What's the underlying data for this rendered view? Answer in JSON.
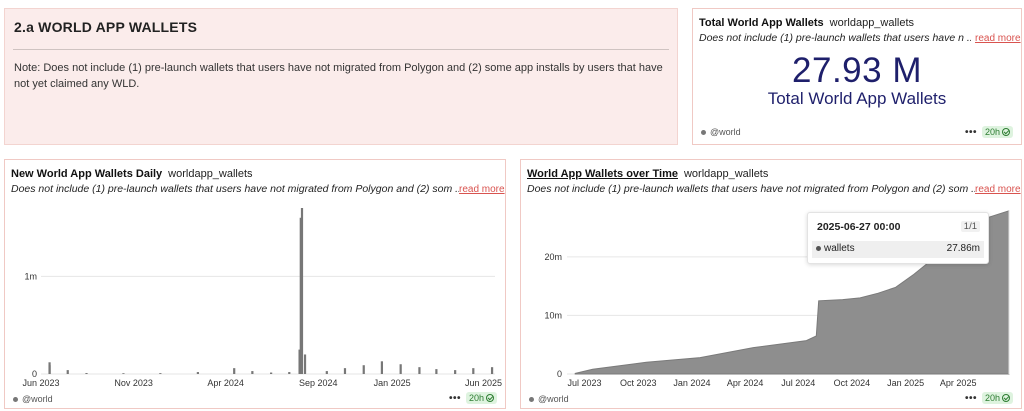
{
  "text_panel": {
    "title": "2.a WORLD APP WALLETS",
    "note": "Note: Does not include (1) pre-launch wallets that users have not migrated from Polygon and (2) some app installs by users that have not yet claimed any WLD."
  },
  "counter_panel": {
    "title": "Total World App Wallets",
    "subtitle": "worldapp_wallets",
    "description": "Does not include (1) pre-launch wallets that users have n ...",
    "read_more": "read more",
    "value": "27.93 M",
    "value_label": "Total World App Wallets",
    "owner": "@world",
    "more": "•••",
    "refresh": "20h"
  },
  "daily_panel": {
    "title": "New World App Wallets Daily",
    "subtitle": "worldapp_wallets",
    "description": "Does not include (1) pre-launch wallets that users have not migrated from Polygon and (2) som ...",
    "read_more": "read more",
    "owner": "@world",
    "more": "•••",
    "refresh": "20h"
  },
  "time_panel": {
    "title": "World App Wallets over Time",
    "subtitle": "worldapp_wallets",
    "description": "Does not include (1) pre-launch wallets that users have not migrated from Polygon and (2) som ...",
    "read_more": "read more",
    "owner": "@world",
    "more": "•••",
    "refresh": "20h",
    "tooltip": {
      "date": "2025-06-27 00:00",
      "page": "1/1",
      "series": "wallets",
      "value": "27.86m"
    }
  },
  "colors": {
    "series": "#888888",
    "accent_red": "#d9534f",
    "big_number": "#1e1f6b",
    "badge_green": "#2e7d32"
  },
  "chart_data": [
    {
      "type": "bar",
      "title": "New World App Wallets Daily",
      "x_ticks": [
        "Jun 2023",
        "Nov 2023",
        "Apr 2024",
        "Sep 2024",
        "Jan 2025",
        "Jun 2025"
      ],
      "y_ticks": [
        "0",
        "1m"
      ],
      "ylim": [
        0,
        1700000
      ],
      "grid": true,
      "x": [
        "2023-06",
        "2023-06",
        "2023-07",
        "2023-08",
        "2023-10",
        "2023-12",
        "2024-02",
        "2024-04",
        "2024-05",
        "2024-06",
        "2024-07",
        "2024-08-01",
        "2024-08-03",
        "2024-08-05",
        "2024-08-10",
        "2024-09",
        "2024-10",
        "2024-11",
        "2024-12",
        "2025-01",
        "2025-02",
        "2025-03",
        "2025-04",
        "2025-05",
        "2025-06"
      ],
      "values": [
        120000,
        90000,
        40000,
        10000,
        8000,
        9000,
        20000,
        60000,
        30000,
        15000,
        20000,
        250000,
        1600000,
        1700000,
        200000,
        30000,
        60000,
        90000,
        130000,
        100000,
        70000,
        50000,
        40000,
        60000,
        70000
      ]
    },
    {
      "type": "area",
      "title": "World App Wallets over Time",
      "x_ticks": [
        "Jul 2023",
        "Oct 2023",
        "Jan 2024",
        "Apr 2024",
        "Jul 2024",
        "Oct 2024",
        "Jan 2025",
        "Apr 2025"
      ],
      "y_ticks": [
        "0",
        "10m",
        "20m"
      ],
      "ylim": [
        0,
        28000000
      ],
      "grid": true,
      "series": [
        {
          "name": "wallets",
          "x": [
            "2023-06",
            "2023-07",
            "2023-10",
            "2024-01",
            "2024-04",
            "2024-07",
            "2024-08-01",
            "2024-08-05",
            "2024-09",
            "2024-10",
            "2024-11",
            "2024-12",
            "2025-01",
            "2025-02",
            "2025-03",
            "2025-04",
            "2025-05",
            "2025-06-27"
          ],
          "values": [
            100000,
            800000,
            2000000,
            2800000,
            4500000,
            5700000,
            6500000,
            12500000,
            12700000,
            13000000,
            13800000,
            14800000,
            17000000,
            19500000,
            22000000,
            24500000,
            26500000,
            27860000
          ]
        }
      ]
    }
  ]
}
